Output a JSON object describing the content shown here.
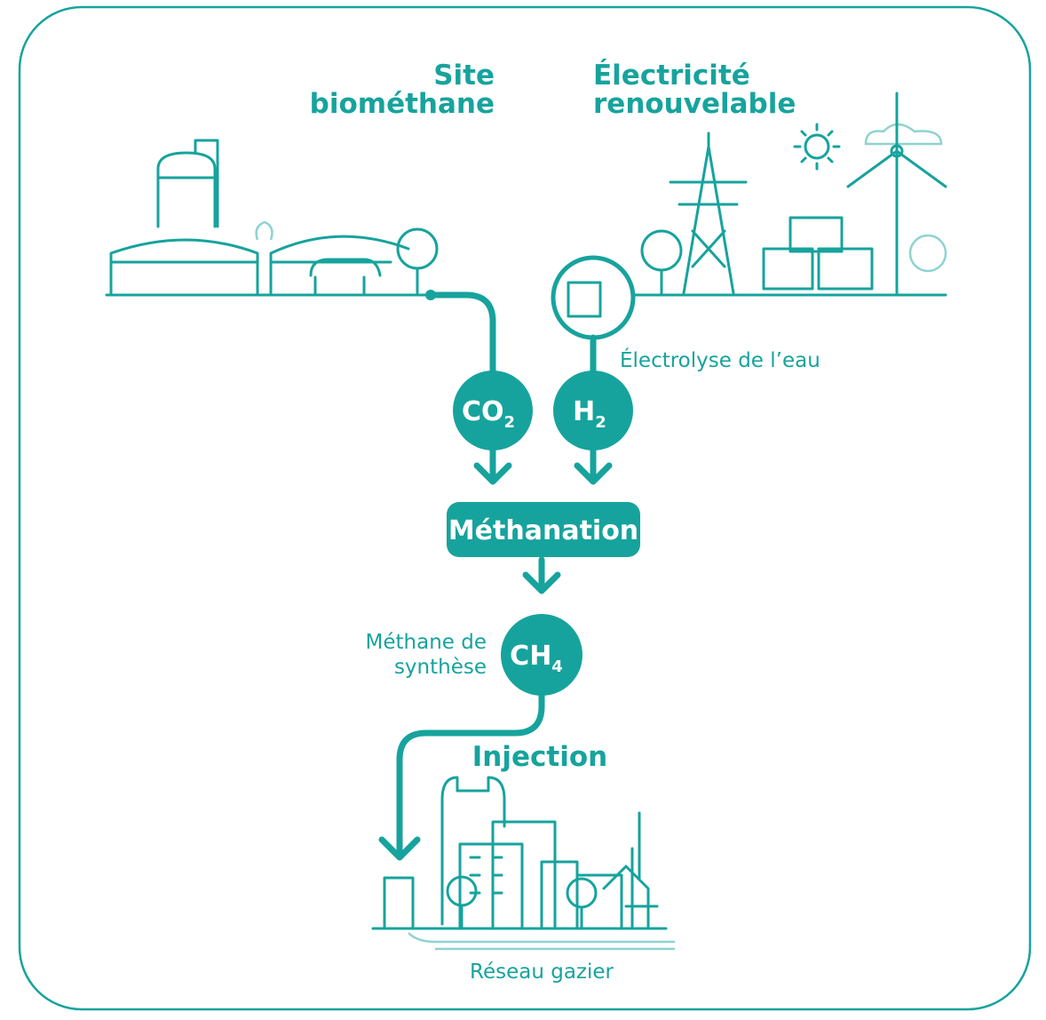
{
  "sources": [
    {
      "lines": [
        "Site",
        "biométhane"
      ]
    },
    {
      "lines": [
        "Électricité",
        "renouvelable"
      ]
    }
  ],
  "electrolysis": "Électrolyse de l’eau",
  "nodes": [
    {
      "label": "CO",
      "subscript": "2"
    },
    {
      "label": "H",
      "subscript": "2"
    },
    {
      "label": "CH",
      "subscript": "4"
    }
  ],
  "process": "Méthanation",
  "product": {
    "lines": [
      "Méthane de",
      "synthèse"
    ]
  },
  "injection": "Injection",
  "network": "Réseau gazier"
}
